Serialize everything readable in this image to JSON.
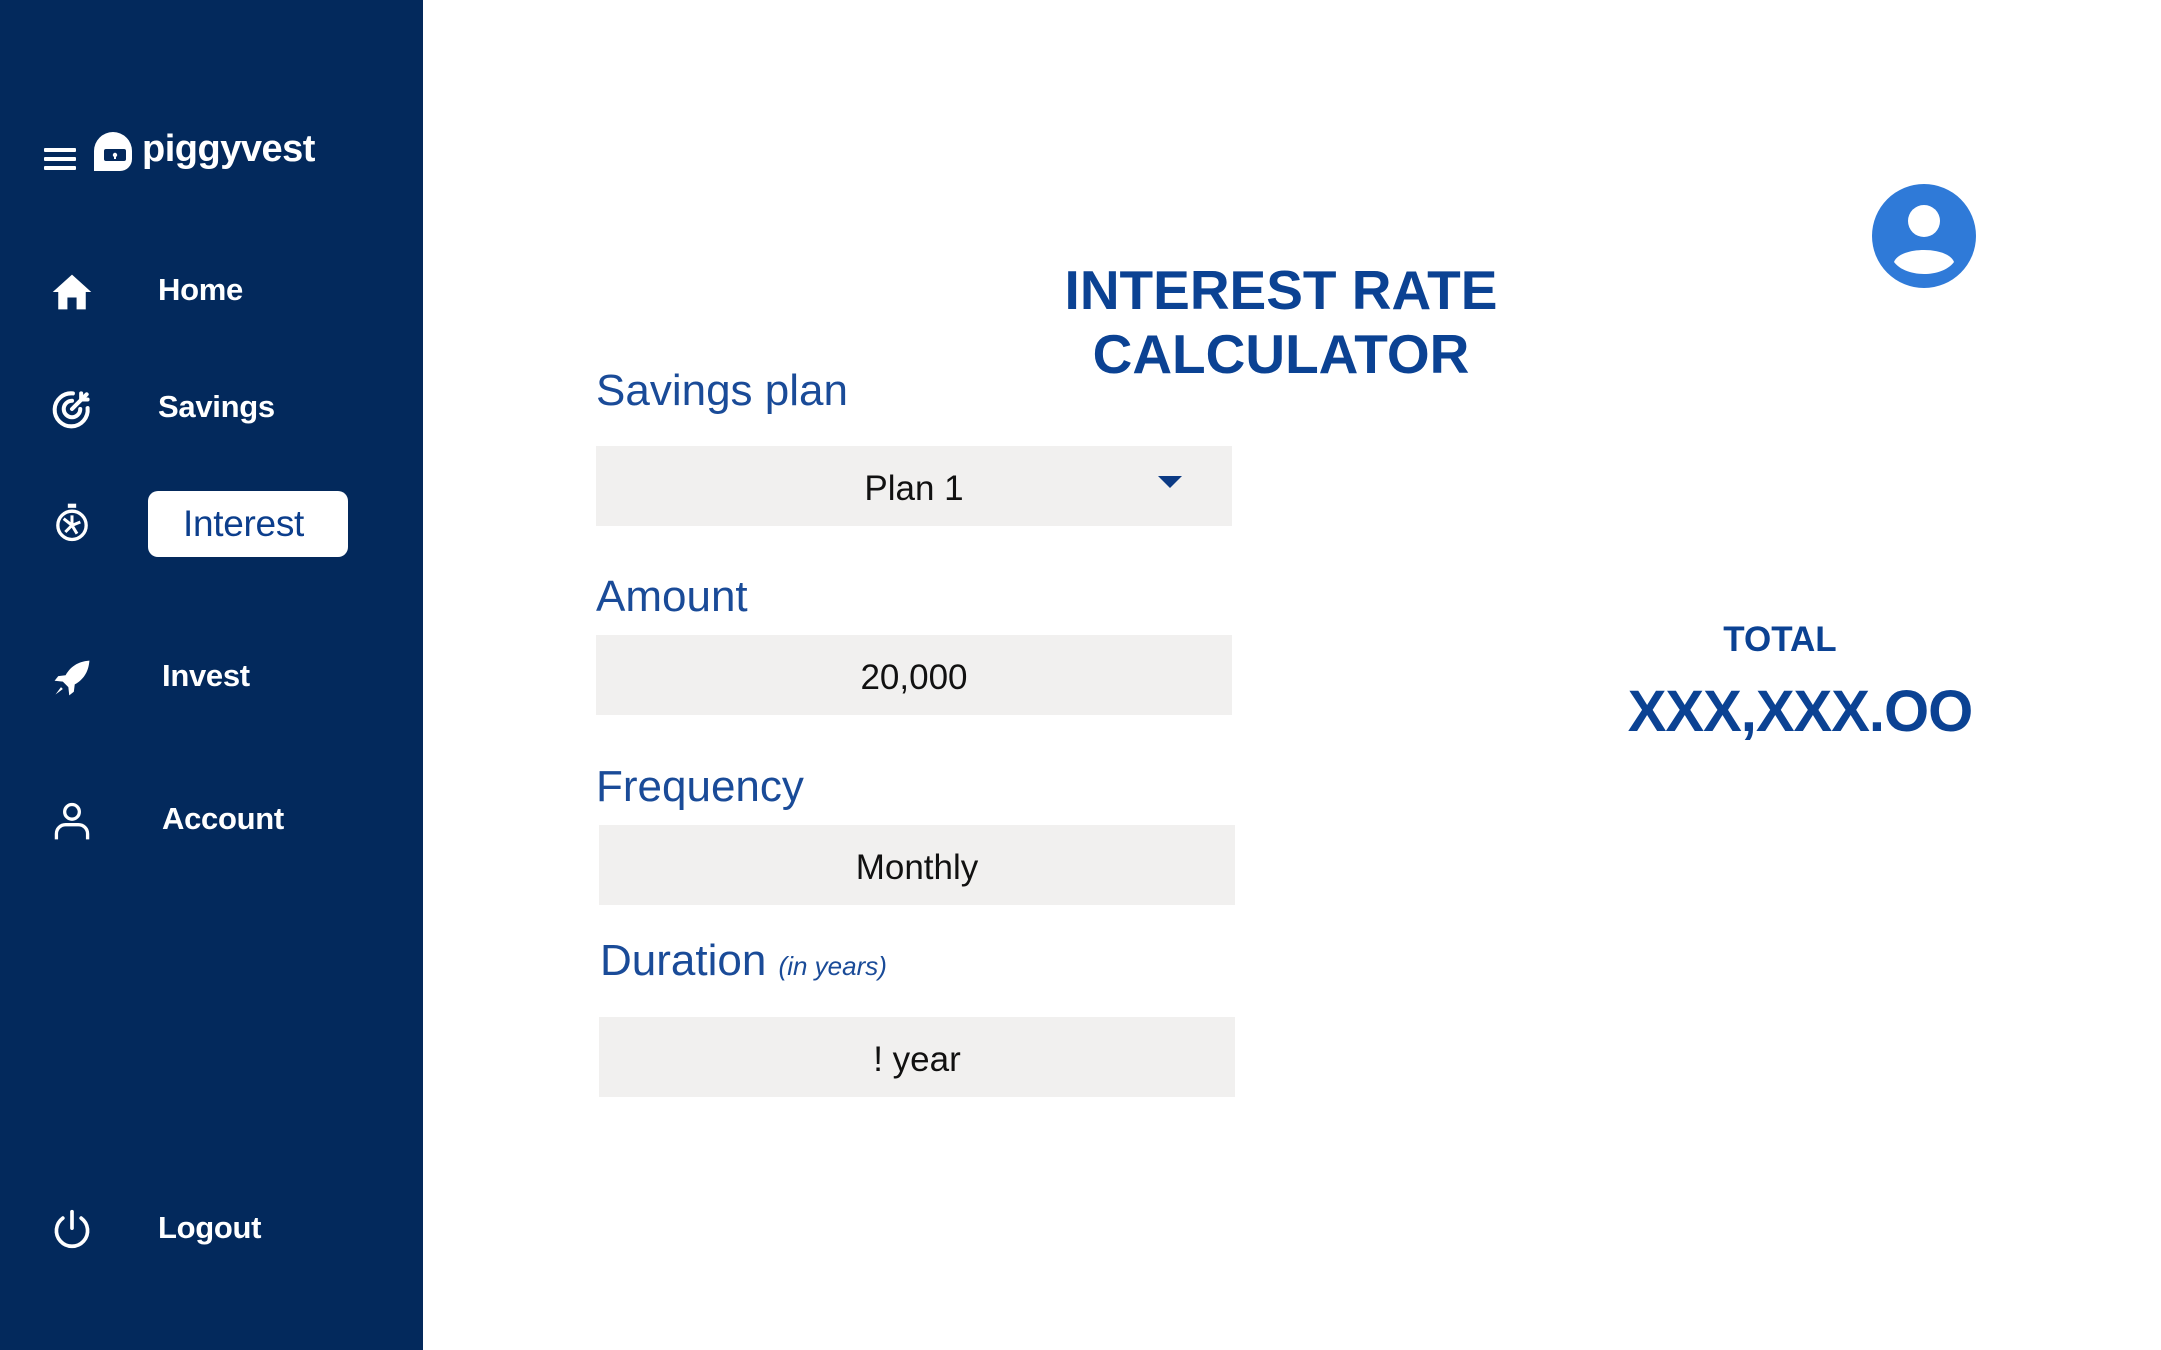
{
  "brand": {
    "name": "piggyvest"
  },
  "sidebar": {
    "items": [
      {
        "label": "Home",
        "icon": "home-icon"
      },
      {
        "label": "Savings",
        "icon": "target-icon"
      },
      {
        "label": "Interest",
        "icon": "stopwatch-icon",
        "active": true
      },
      {
        "label": "Invest",
        "icon": "rocket-icon"
      },
      {
        "label": "Account",
        "icon": "user-icon"
      },
      {
        "label": "Logout",
        "icon": "power-icon"
      }
    ]
  },
  "main": {
    "title": "INTEREST RATE CALCULATOR",
    "fields": {
      "savings_plan": {
        "label": "Savings plan",
        "value": "Plan 1"
      },
      "amount": {
        "label": "Amount",
        "value": "20,000"
      },
      "frequency": {
        "label": "Frequency",
        "value": "Monthly"
      },
      "duration": {
        "label": "Duration",
        "hint": "(in years)",
        "value": "! year"
      }
    },
    "total": {
      "label": "TOTAL",
      "value": "XXX,XXX.OO"
    }
  },
  "colors": {
    "sidebar_bg": "#03295c",
    "accent": "#0b4293",
    "avatar": "#2f7ad8",
    "field_bg": "#f1f0ef"
  }
}
